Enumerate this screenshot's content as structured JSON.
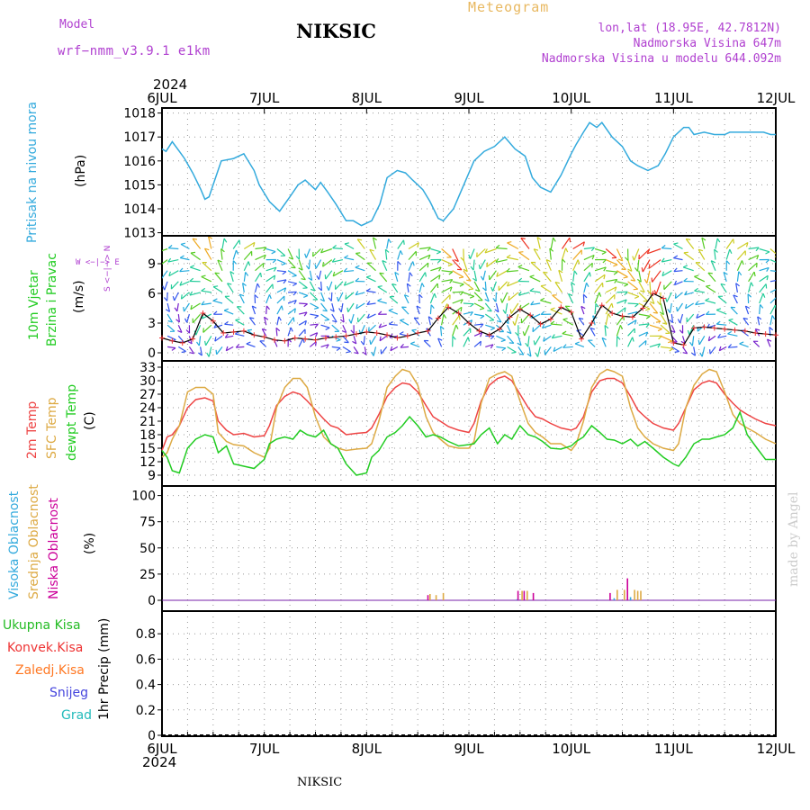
{
  "header": {
    "model_label": "Model",
    "model_name": "wrf−nmm_v3.9.1  e1km",
    "station": "NIKSIC",
    "chart_title": "Meteogram",
    "lonlat": "lon,lat (18.95E, 42.7812N)",
    "elevation": "Nadmorska Visina 647m",
    "model_elevation": "Nadmorska Visina u modelu 644.092m",
    "year_top": "2024",
    "year_bottom": "2024",
    "footer_station": "NIKSIC",
    "watermark": "made by Angel"
  },
  "x_axis": {
    "labels": [
      "6JUL",
      "7JUL",
      "8JUL",
      "9JUL",
      "10JUL",
      "11JUL",
      "12JUL"
    ]
  },
  "colors": {
    "pressure": "#33aadd",
    "temp2m": "#ee4444",
    "sfc": "#ddaa44",
    "dew": "#22cc22",
    "high_cloud": "#33aadd",
    "mid_cloud": "#ddaa44",
    "low_cloud": "#cc0099",
    "total_precip": "#22bb22",
    "conv_precip": "#ee3333",
    "frozen_precip": "#ff7722",
    "snow": "#4444dd",
    "graupel": "#22bbbb",
    "text_purple": "#b040d0"
  },
  "panels": {
    "pressure": {
      "label": "Pritisak na nivou mora",
      "unit": "(hPa)"
    },
    "wind": {
      "label1": "10m Vjetar",
      "label2": "Brzina i Pravac",
      "unit": "(m/s)",
      "compass": "W <−|−> E",
      "compass_ns": "S <−|−> N"
    },
    "temp": {
      "label1": "2m Temp",
      "label2": "SFC Temp",
      "label3": "dewpt Temp",
      "unit": "(C)"
    },
    "cloud": {
      "label1": "Visoka Oblacnost",
      "label2": "Srednja Oblacnost",
      "label3": "Niska Oblacnost",
      "unit": "(%)"
    },
    "precip": {
      "unit": "1hr Precip (mm)",
      "legend": [
        "Ukupna Kisa",
        "Konvek.Kisa",
        "Zaledj.Kisa",
        "Snijeg",
        "Grad"
      ]
    }
  },
  "chart_data": [
    {
      "type": "line",
      "title": "Pritisak na nivou mora",
      "ylabel": "(hPa)",
      "ylim": [
        1013,
        1018
      ],
      "yticks": [
        1013,
        1014,
        1015,
        1016,
        1017,
        1018
      ],
      "x_days": [
        0,
        0.04,
        0.1,
        0.17,
        0.22,
        0.3,
        0.38,
        0.42,
        0.46,
        0.5,
        0.58,
        0.7,
        0.8,
        0.9,
        0.95,
        1.05,
        1.15,
        1.25,
        1.33,
        1.4,
        1.5,
        1.55,
        1.62,
        1.7,
        1.8,
        1.87,
        1.95,
        2.05,
        2.13,
        2.2,
        2.3,
        2.38,
        2.45,
        2.55,
        2.62,
        2.7,
        2.75,
        2.85,
        2.95,
        3.05,
        3.15,
        3.25,
        3.35,
        3.45,
        3.55,
        3.62,
        3.7,
        3.8,
        3.9,
        4.0,
        4.05,
        4.12,
        4.18,
        4.25,
        4.3,
        4.4,
        4.5,
        4.58,
        4.65,
        4.75,
        4.85,
        4.92,
        5.0,
        5.1,
        5.15,
        5.2,
        5.3,
        5.4,
        5.5,
        5.55,
        5.62,
        5.7,
        5.8,
        5.88,
        5.95,
        6.0
      ],
      "series": [
        {
          "values": [
            1016.5,
            1016.4,
            1016.8,
            1016.4,
            1016.1,
            1015.5,
            1014.8,
            1014.4,
            1014.5,
            1015.0,
            1016.0,
            1016.1,
            1016.3,
            1015.6,
            1015.0,
            1014.3,
            1013.9,
            1014.5,
            1015.0,
            1015.2,
            1014.8,
            1015.1,
            1014.7,
            1014.2,
            1013.5,
            1013.5,
            1013.3,
            1013.5,
            1014.2,
            1015.3,
            1015.6,
            1015.5,
            1015.2,
            1014.8,
            1014.3,
            1013.6,
            1013.5,
            1014.0,
            1015.0,
            1016.0,
            1016.4,
            1016.6,
            1017.0,
            1016.5,
            1016.2,
            1015.3,
            1014.9,
            1014.7,
            1015.4,
            1016.3,
            1016.7,
            1017.2,
            1017.6,
            1017.4,
            1017.6,
            1017.0,
            1016.6,
            1016.0,
            1015.8,
            1015.6,
            1015.8,
            1016.3,
            1017.0,
            1017.4,
            1017.4,
            1017.1,
            1017.2,
            1017.1,
            1017.1,
            1017.2,
            1017.2,
            1017.2,
            1017.2,
            1017.2,
            1017.1,
            1017.1
          ]
        }
      ]
    },
    {
      "type": "line",
      "title": "10m Vjetar Brzina i Pravac",
      "ylabel": "(m/s)",
      "ylim": [
        0,
        11.5
      ],
      "yticks": [
        0,
        3,
        6,
        9
      ],
      "x_days": [
        0,
        0.1,
        0.2,
        0.3,
        0.4,
        0.5,
        0.6,
        0.7,
        0.8,
        0.9,
        1.0,
        1.1,
        1.2,
        1.3,
        1.4,
        1.5,
        1.6,
        1.7,
        1.8,
        1.9,
        2.0,
        2.1,
        2.2,
        2.3,
        2.4,
        2.5,
        2.6,
        2.7,
        2.8,
        2.9,
        3.0,
        3.1,
        3.2,
        3.3,
        3.4,
        3.5,
        3.6,
        3.7,
        3.8,
        3.9,
        4.0,
        4.1,
        4.2,
        4.3,
        4.4,
        4.5,
        4.6,
        4.7,
        4.8,
        4.9,
        5.0,
        5.1,
        5.2,
        5.3,
        5.4,
        5.5,
        5.6,
        5.7,
        5.8,
        5.9,
        6.0
      ],
      "series": [
        {
          "name": "speed",
          "values": [
            1.5,
            1.2,
            1.0,
            1.4,
            4.0,
            3.2,
            2.0,
            2.1,
            2.2,
            1.8,
            1.6,
            1.3,
            1.2,
            1.5,
            1.4,
            1.3,
            1.5,
            1.6,
            1.7,
            1.9,
            2.1,
            2.0,
            1.8,
            1.5,
            1.7,
            2.0,
            2.2,
            3.5,
            4.6,
            4.0,
            3.0,
            2.2,
            1.8,
            2.4,
            3.6,
            4.4,
            3.8,
            2.9,
            3.4,
            4.6,
            4.1,
            1.4,
            3.0,
            4.8,
            4.0,
            3.7,
            3.6,
            4.5,
            6.0,
            5.5,
            1.0,
            0.8,
            2.5,
            2.6,
            2.5,
            2.4,
            2.3,
            2.2,
            2.0,
            1.9,
            1.8
          ]
        }
      ]
    },
    {
      "type": "line",
      "title": "2m Temp / SFC Temp / dewpt Temp",
      "ylabel": "(C)",
      "ylim": [
        7.5,
        33
      ],
      "yticks": [
        9,
        12,
        15,
        18,
        21,
        24,
        27,
        30,
        33
      ],
      "x_days": [
        0,
        0.05,
        0.1,
        0.17,
        0.25,
        0.33,
        0.42,
        0.5,
        0.55,
        0.63,
        0.7,
        0.8,
        0.9,
        1.0,
        1.05,
        1.12,
        1.2,
        1.28,
        1.35,
        1.42,
        1.5,
        1.58,
        1.65,
        1.72,
        1.8,
        1.9,
        2.0,
        2.05,
        2.12,
        2.2,
        2.28,
        2.35,
        2.42,
        2.5,
        2.58,
        2.65,
        2.72,
        2.8,
        2.9,
        3.0,
        3.05,
        3.12,
        3.2,
        3.28,
        3.35,
        3.42,
        3.5,
        3.58,
        3.65,
        3.72,
        3.8,
        3.9,
        4.0,
        4.05,
        4.12,
        4.2,
        4.28,
        4.35,
        4.42,
        4.5,
        4.58,
        4.65,
        4.72,
        4.8,
        4.9,
        5.0,
        5.05,
        5.12,
        5.2,
        5.28,
        5.35,
        5.42,
        5.5,
        5.58,
        5.65,
        5.72,
        5.8,
        5.9,
        6.0
      ],
      "series": [
        {
          "name": "2m Temp",
          "values": [
            14.5,
            17.5,
            18.0,
            20.0,
            24.0,
            25.8,
            26.2,
            25.5,
            21.0,
            19.0,
            18.0,
            18.3,
            17.5,
            17.8,
            20.0,
            24.5,
            26.5,
            27.5,
            27.0,
            25.5,
            23.5,
            21.5,
            20.0,
            19.5,
            18.0,
            18.3,
            18.5,
            19.5,
            22.5,
            26.5,
            28.5,
            29.5,
            29.2,
            27.5,
            24.5,
            22.0,
            21.0,
            19.8,
            19.0,
            18.5,
            20.5,
            25.5,
            29.0,
            30.5,
            31.0,
            30.0,
            27.0,
            24.0,
            22.0,
            21.5,
            20.5,
            19.5,
            19.0,
            19.5,
            22.0,
            27.5,
            30.0,
            30.5,
            30.5,
            29.5,
            26.5,
            23.5,
            22.0,
            20.5,
            19.5,
            19.0,
            20.5,
            24.0,
            28.0,
            29.5,
            30.0,
            29.5,
            27.0,
            25.0,
            23.5,
            22.5,
            21.5,
            20.5,
            20.0
          ]
        },
        {
          "name": "SFC Temp",
          "values": [
            13.0,
            14.0,
            17.0,
            20.0,
            27.5,
            28.5,
            28.5,
            27.0,
            18.5,
            16.5,
            15.8,
            15.5,
            14.0,
            13.0,
            15.0,
            24.0,
            28.5,
            30.5,
            30.5,
            28.5,
            22.0,
            17.5,
            16.0,
            15.0,
            14.5,
            14.8,
            15.0,
            16.0,
            21.0,
            28.5,
            31.0,
            32.5,
            32.0,
            29.0,
            22.0,
            18.5,
            17.0,
            15.5,
            15.0,
            15.0,
            16.5,
            25.0,
            30.5,
            31.5,
            32.0,
            31.0,
            25.5,
            20.5,
            18.5,
            17.5,
            16.0,
            16.0,
            14.5,
            16.0,
            21.0,
            28.5,
            31.5,
            32.5,
            32.0,
            31.0,
            24.0,
            19.5,
            17.5,
            16.0,
            15.0,
            14.5,
            16.0,
            24.0,
            29.0,
            31.5,
            32.5,
            32.0,
            27.5,
            22.5,
            20.5,
            19.5,
            18.5,
            17.0,
            16.0
          ]
        },
        {
          "name": "dewpt Temp",
          "values": [
            14.5,
            13.0,
            10.0,
            9.5,
            15.0,
            17.0,
            18.0,
            17.5,
            14.0,
            15.5,
            11.5,
            11.0,
            10.5,
            12.5,
            16.0,
            17.0,
            17.5,
            17.0,
            19.0,
            18.0,
            17.5,
            19.0,
            16.0,
            15.0,
            11.5,
            9.0,
            9.5,
            13.0,
            14.5,
            17.5,
            18.5,
            20.0,
            22.0,
            20.0,
            17.5,
            18.0,
            17.5,
            16.5,
            15.5,
            15.8,
            16.0,
            18.0,
            19.5,
            16.0,
            18.0,
            17.0,
            20.0,
            18.0,
            17.5,
            16.5,
            15.0,
            14.8,
            15.5,
            16.5,
            17.5,
            20.0,
            18.5,
            17.0,
            16.8,
            16.0,
            17.0,
            15.5,
            16.5,
            15.0,
            13.0,
            11.5,
            11.0,
            13.0,
            16.0,
            17.0,
            17.0,
            17.5,
            18.0,
            19.5,
            23.0,
            18.0,
            15.5,
            12.5,
            12.5
          ]
        }
      ]
    },
    {
      "type": "bar",
      "title": "Oblacnost",
      "ylabel": "(%)",
      "ylim": [
        0,
        105
      ],
      "yticks": [
        0,
        25,
        50,
        75,
        100
      ],
      "series": [
        {
          "name": "Visoka Oblacnost",
          "x_days": [
            3.47,
            4.42,
            4.58
          ],
          "values": [
            1,
            2,
            3
          ]
        },
        {
          "name": "Srednja Oblacnost",
          "x_days": [
            2.62,
            2.68,
            2.75,
            3.52,
            3.57,
            4.45,
            4.52,
            4.62,
            4.65,
            4.68
          ],
          "values": [
            6,
            5,
            7,
            9,
            9,
            10,
            10,
            10,
            9,
            9
          ]
        },
        {
          "name": "Niska Oblacnost",
          "x_days": [
            2.6,
            3.48,
            3.54,
            3.63,
            4.38,
            4.55
          ],
          "values": [
            5,
            9,
            9,
            7,
            7,
            21
          ]
        }
      ]
    },
    {
      "type": "bar",
      "title": "1hr Precip",
      "ylabel": "1hr Precip (mm)",
      "ylim": [
        0,
        1.0
      ],
      "yticks": [
        0,
        0.2,
        0.4,
        0.6,
        0.8
      ],
      "series": [
        {
          "name": "Ukupna Kisa",
          "values": []
        },
        {
          "name": "Konvek.Kisa",
          "values": []
        },
        {
          "name": "Zaledj.Kisa",
          "values": []
        },
        {
          "name": "Snijeg",
          "values": []
        },
        {
          "name": "Grad",
          "values": []
        }
      ]
    }
  ]
}
